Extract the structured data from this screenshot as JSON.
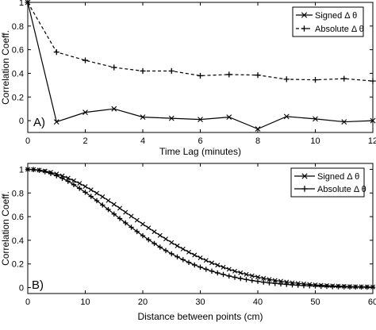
{
  "chart_data": [
    {
      "type": "line",
      "panel_label": "A)",
      "xlabel": "Time Lag (minutes)",
      "ylabel": "Correlation Coeff.",
      "xlim": [
        0,
        12
      ],
      "ylim": [
        -0.1,
        1
      ],
      "xticks": [
        "0",
        "2",
        "4",
        "6",
        "8",
        "10",
        "12"
      ],
      "yticks": [
        "0",
        "0.2",
        "0.4",
        "0.6",
        "0.8",
        "1"
      ],
      "x": [
        0,
        1,
        2,
        3,
        4,
        5,
        6,
        7,
        8,
        9,
        10,
        11,
        12
      ],
      "legend_position": "top-right",
      "grid": false,
      "series": [
        {
          "name": "Signed Δ θ",
          "line_style": "solid",
          "marker": "x",
          "color": "#000000",
          "values": [
            1.0,
            -0.01,
            0.07,
            0.1,
            0.03,
            0.02,
            0.01,
            0.03,
            -0.07,
            0.035,
            0.015,
            -0.01,
            0.0
          ]
        },
        {
          "name": "Absolute Δ θ",
          "line_style": "dashed",
          "marker": "+",
          "color": "#000000",
          "values": [
            1.0,
            0.58,
            0.51,
            0.45,
            0.42,
            0.42,
            0.38,
            0.39,
            0.385,
            0.35,
            0.345,
            0.355,
            0.335
          ]
        }
      ]
    },
    {
      "type": "line",
      "panel_label": "B)",
      "xlabel": "Distance between points (cm)",
      "ylabel": "Correlation Coeff.",
      "xlim": [
        0,
        60
      ],
      "ylim": [
        -0.05,
        1.05
      ],
      "xticks": [
        "0",
        "10",
        "20",
        "30",
        "40",
        "50",
        "60"
      ],
      "yticks": [
        "0",
        "0.2",
        "0.4",
        "0.6",
        "0.8",
        "1"
      ],
      "x": [
        0,
        1,
        2,
        3,
        4,
        5,
        6,
        7,
        8,
        9,
        10,
        11,
        12,
        13,
        14,
        15,
        16,
        17,
        18,
        19,
        20,
        21,
        22,
        23,
        24,
        25,
        26,
        27,
        28,
        29,
        30,
        31,
        32,
        33,
        34,
        35,
        36,
        37,
        38,
        39,
        40,
        41,
        42,
        43,
        44,
        45,
        46,
        47,
        48,
        49,
        50,
        51,
        52,
        53,
        54,
        55,
        56,
        57,
        58,
        59,
        60
      ],
      "legend_position": "top-right",
      "grid": false,
      "series": [
        {
          "name": "Signed Δ θ",
          "line_style": "solid",
          "marker": "x",
          "color": "#000000",
          "values": [
            1.0,
            0.999,
            0.994,
            0.986,
            0.975,
            0.961,
            0.945,
            0.926,
            0.904,
            0.881,
            0.855,
            0.827,
            0.798,
            0.768,
            0.736,
            0.704,
            0.671,
            0.637,
            0.604,
            0.57,
            0.537,
            0.505,
            0.472,
            0.441,
            0.411,
            0.381,
            0.353,
            0.326,
            0.3,
            0.275,
            0.252,
            0.23,
            0.209,
            0.19,
            0.172,
            0.155,
            0.139,
            0.125,
            0.112,
            0.1,
            0.089,
            0.078,
            0.069,
            0.061,
            0.054,
            0.047,
            0.041,
            0.036,
            0.031,
            0.027,
            0.023,
            0.02,
            0.017,
            0.015,
            0.013,
            0.011,
            0.009,
            0.008,
            0.007,
            0.006,
            0.005
          ]
        },
        {
          "name": "Absolute Δ θ",
          "line_style": "solid",
          "marker": "+",
          "color": "#000000",
          "values": [
            1.0,
            0.998,
            0.991,
            0.98,
            0.965,
            0.946,
            0.924,
            0.899,
            0.87,
            0.839,
            0.806,
            0.771,
            0.735,
            0.698,
            0.66,
            0.622,
            0.584,
            0.547,
            0.51,
            0.474,
            0.439,
            0.405,
            0.373,
            0.342,
            0.313,
            0.286,
            0.26,
            0.236,
            0.213,
            0.192,
            0.173,
            0.155,
            0.139,
            0.124,
            0.111,
            0.098,
            0.087,
            0.077,
            0.068,
            0.06,
            0.053,
            0.046,
            0.04,
            0.035,
            0.031,
            0.027,
            0.023,
            0.02,
            0.017,
            0.015,
            0.013,
            0.011,
            0.01,
            0.008,
            0.007,
            0.006,
            0.005,
            0.004,
            0.004,
            0.003,
            0.003
          ]
        }
      ]
    }
  ]
}
